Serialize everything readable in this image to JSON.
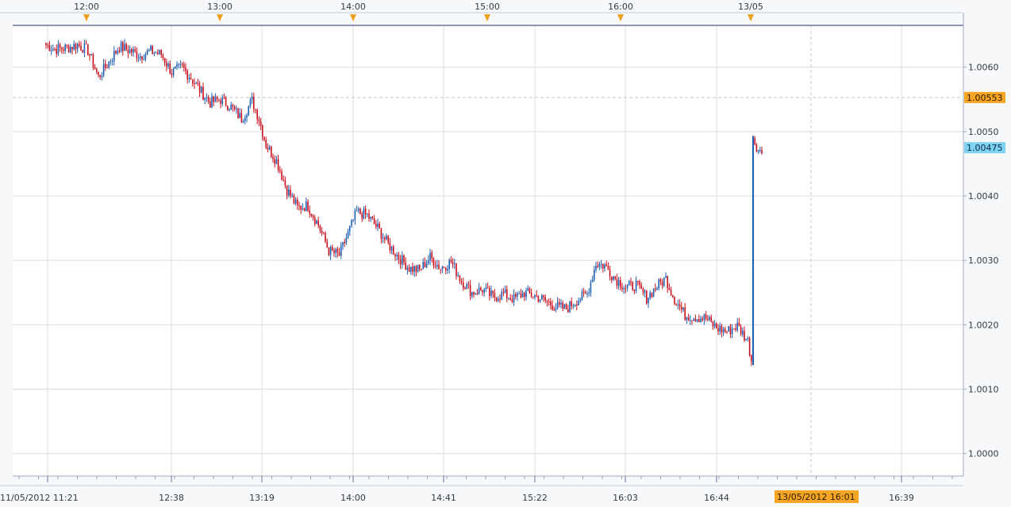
{
  "chart_data": {
    "type": "candlestick",
    "colors": {
      "up": "#1f5fb0",
      "down": "#c8101e",
      "grid": "#d9dce2",
      "axis_text": "#333a46",
      "marker": "#f0a020",
      "last_price_bg": "#7fd3f2",
      "crosshair_price_bg": "#f6a623",
      "crosshair_time_bg": "#f6a623",
      "frame": "#a0a8c0"
    },
    "ylim": [
      0.99965,
      1.00665
    ],
    "y_ticks": [
      "1.0000",
      "1.0010",
      "1.0020",
      "1.0030",
      "1.0040",
      "1.0050",
      "1.0060"
    ],
    "x_ticks_bottom": [
      "11/05/2012 11:21",
      "12:38",
      "13:19",
      "14:00",
      "14:41",
      "15:22",
      "16:03",
      "16:44",
      "16:39"
    ],
    "x_ticks_top": [
      "12:00",
      "13:00",
      "14:00",
      "15:00",
      "16:00",
      "13/05"
    ],
    "last_price_label": "1.00475",
    "crosshair_price_label": "1.00553",
    "crosshair_time_label": "13/05/2012 16:01",
    "price_anchors": [
      [
        0,
        1.00635
      ],
      [
        5,
        1.00628
      ],
      [
        12,
        1.0063
      ],
      [
        18,
        1.00635
      ],
      [
        24,
        1.00626
      ],
      [
        30,
        1.00585
      ],
      [
        36,
        1.00608
      ],
      [
        42,
        1.00632
      ],
      [
        48,
        1.00626
      ],
      [
        54,
        1.00618
      ],
      [
        60,
        1.00625
      ],
      [
        66,
        1.0062
      ],
      [
        72,
        1.00592
      ],
      [
        78,
        1.006
      ],
      [
        84,
        1.0058
      ],
      [
        88,
        1.00565
      ],
      [
        94,
        1.00545
      ],
      [
        100,
        1.0055
      ],
      [
        106,
        1.00538
      ],
      [
        112,
        1.0052
      ],
      [
        118,
        1.00548
      ],
      [
        122,
        1.0052
      ],
      [
        126,
        1.0048
      ],
      [
        132,
        1.00455
      ],
      [
        138,
        1.0041
      ],
      [
        144,
        1.00382
      ],
      [
        150,
        1.00385
      ],
      [
        156,
        1.00355
      ],
      [
        162,
        1.00315
      ],
      [
        168,
        1.00308
      ],
      [
        172,
        1.00335
      ],
      [
        178,
        1.00375
      ],
      [
        184,
        1.0037
      ],
      [
        190,
        1.0035
      ],
      [
        196,
        1.00325
      ],
      [
        202,
        1.00305
      ],
      [
        208,
        1.00288
      ],
      [
        214,
        1.00285
      ],
      [
        220,
        1.00305
      ],
      [
        226,
        1.00288
      ],
      [
        232,
        1.00298
      ],
      [
        238,
        1.00268
      ],
      [
        244,
        1.0025
      ],
      [
        250,
        1.00255
      ],
      [
        256,
        1.00243
      ],
      [
        262,
        1.00248
      ],
      [
        268,
        1.0024
      ],
      [
        274,
        1.0025
      ],
      [
        280,
        1.00245
      ],
      [
        286,
        1.00237
      ],
      [
        292,
        1.00228
      ],
      [
        298,
        1.00225
      ],
      [
        304,
        1.00238
      ],
      [
        310,
        1.00248
      ],
      [
        315,
        1.00295
      ],
      [
        320,
        1.00292
      ],
      [
        326,
        1.00272
      ],
      [
        332,
        1.00258
      ],
      [
        338,
        1.00262
      ],
      [
        344,
        1.00242
      ],
      [
        350,
        1.0026
      ],
      [
        355,
        1.00272
      ],
      [
        360,
        1.0024
      ],
      [
        366,
        1.00215
      ],
      [
        372,
        1.00212
      ],
      [
        378,
        1.0021
      ],
      [
        384,
        1.00195
      ],
      [
        390,
        1.0019
      ],
      [
        396,
        1.00198
      ],
      [
        402,
        1.00175
      ],
      [
        404,
        1.00145
      ],
      [
        405,
        1.0049
      ],
      [
        408,
        1.00472
      ]
    ]
  }
}
